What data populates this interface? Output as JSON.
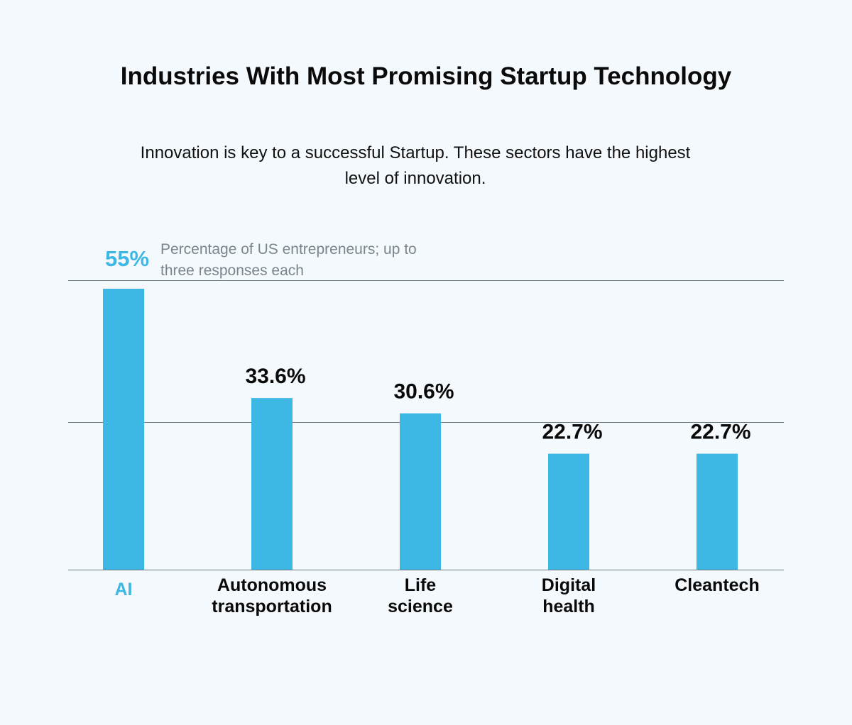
{
  "chart_data": {
    "type": "bar",
    "title": "Industries With Most Promising Startup Technology",
    "subtitle": "Innovation is key to a successful Startup. These sectors have the highest level of innovation.",
    "note": "Percentage of US entrepreneurs; up to three responses each",
    "categories": [
      "AI",
      "Autonomous transportation",
      "Life science",
      "Digital health",
      "Cleantech"
    ],
    "category_lines": [
      [
        "AI"
      ],
      [
        "Autonomous",
        "transportation"
      ],
      [
        "Life",
        "science"
      ],
      [
        "Digital",
        "health"
      ],
      [
        "Cleantech"
      ]
    ],
    "values": [
      55,
      33.6,
      30.6,
      22.7,
      22.7
    ],
    "data_labels": [
      "55%",
      "33.6%",
      "30.6%",
      "22.7%",
      "22.7%"
    ],
    "unit": "%",
    "highlight_index": 0,
    "ylim": [
      0,
      55
    ],
    "grid": true,
    "colors": {
      "bar": "#3db8e5",
      "highlight_text": "#3db8e5",
      "label_text": "#0a0a0a",
      "grid": "#6e7b82",
      "background": "#f3f9fc"
    }
  }
}
